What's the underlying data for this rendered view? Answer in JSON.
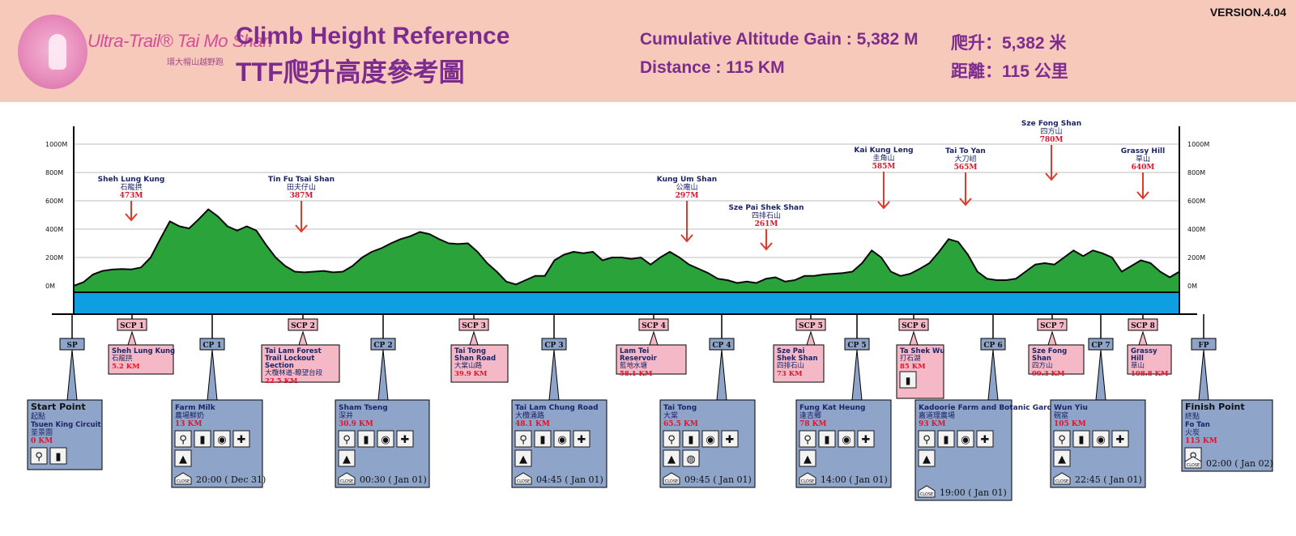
{
  "header": {
    "version": "VERSION.4.04",
    "logo_text": "Ultra-Trail® Tai Mo Shan",
    "logo_sub": "環大帽山越野跑",
    "title_en": "Climb Height Reference",
    "title_zh": "TTF爬升高度參考圖",
    "gain_en": "Cumulative Altitude Gain : 5,382 M",
    "distance_en": "Distance : 115 KM",
    "gain_zh": "爬升：5,382 米",
    "distance_zh": "距離：115 公里"
  },
  "colors": {
    "header_bg": "#f7c9bb",
    "title": "#7c2c8c",
    "terrain": "#2aa33a",
    "water": "#109ee2",
    "cp_box": "#8ea4c8",
    "scp_box": "#f4b8c6",
    "peak_arrow": "#e03a2a"
  },
  "chart_data": {
    "type": "area",
    "title": "Climb Height Reference",
    "y_axis_ticks": [
      "1000M",
      "800M",
      "600M",
      "400M",
      "200M",
      "0M"
    ],
    "y_range": [
      0,
      1000
    ],
    "profile": [
      [
        0,
        0.0
      ],
      [
        1,
        25.0
      ],
      [
        2,
        80.0
      ],
      [
        3,
        105.0
      ],
      [
        4,
        115.0
      ],
      [
        5,
        118.0
      ],
      [
        6,
        116.0
      ],
      [
        7,
        130.0
      ],
      [
        8,
        200.0
      ],
      [
        9,
        330.0
      ],
      [
        10,
        455.0
      ],
      [
        11,
        420.0
      ],
      [
        12,
        405.0
      ],
      [
        13,
        470.0
      ],
      [
        14,
        540.0
      ],
      [
        15,
        490.0
      ],
      [
        16,
        420.0
      ],
      [
        17,
        390.0
      ],
      [
        18,
        420.0
      ],
      [
        19,
        390.0
      ],
      [
        20,
        290.0
      ],
      [
        21,
        200.0
      ],
      [
        22,
        140.0
      ],
      [
        23,
        100.0
      ],
      [
        24,
        95.0
      ],
      [
        25,
        100.0
      ],
      [
        26,
        105.0
      ],
      [
        27,
        95.0
      ],
      [
        28,
        100.0
      ],
      [
        29,
        140.0
      ],
      [
        30,
        200.0
      ],
      [
        31,
        240.0
      ],
      [
        32,
        265.0
      ],
      [
        33,
        300.0
      ],
      [
        34,
        330.0
      ],
      [
        35,
        350.0
      ],
      [
        36,
        380.0
      ],
      [
        37,
        365.0
      ],
      [
        38,
        330.0
      ],
      [
        39,
        300.0
      ],
      [
        40,
        295.0
      ],
      [
        41,
        300.0
      ],
      [
        42,
        240.0
      ],
      [
        43,
        160.0
      ],
      [
        44,
        100.0
      ],
      [
        45,
        30.0
      ],
      [
        46,
        10.0
      ],
      [
        47,
        40.0
      ],
      [
        48,
        70.0
      ],
      [
        49,
        70.0
      ],
      [
        50,
        180.0
      ],
      [
        51,
        220.0
      ],
      [
        52,
        240.0
      ],
      [
        53,
        230.0
      ],
      [
        54,
        240.0
      ],
      [
        55,
        180.0
      ],
      [
        56,
        200.0
      ],
      [
        57,
        200.0
      ],
      [
        58,
        190.0
      ],
      [
        59,
        200.0
      ],
      [
        60,
        150.0
      ],
      [
        61,
        200.0
      ],
      [
        62,
        240.0
      ],
      [
        63,
        200.0
      ],
      [
        64,
        150.0
      ],
      [
        65,
        120.0
      ],
      [
        66,
        90.0
      ],
      [
        67,
        50.0
      ],
      [
        68,
        40.0
      ],
      [
        69,
        20.0
      ],
      [
        70,
        30.0
      ],
      [
        71,
        20.0
      ],
      [
        72,
        50.0
      ],
      [
        73,
        60.0
      ],
      [
        74,
        30.0
      ],
      [
        75,
        40.0
      ],
      [
        76,
        70.0
      ],
      [
        77,
        70.0
      ],
      [
        78,
        80.0
      ],
      [
        79,
        85.0
      ],
      [
        80,
        90.0
      ],
      [
        81,
        100.0
      ],
      [
        82,
        160.0
      ],
      [
        83,
        250.0
      ],
      [
        84,
        200.0
      ],
      [
        85,
        100.0
      ],
      [
        86,
        70.0
      ],
      [
        87,
        85.0
      ],
      [
        88,
        120.0
      ],
      [
        89,
        160.0
      ],
      [
        90,
        240.0
      ],
      [
        91,
        330.0
      ],
      [
        92,
        310.0
      ],
      [
        93,
        220.0
      ],
      [
        94,
        100.0
      ],
      [
        95,
        50.0
      ],
      [
        96,
        40.0
      ],
      [
        97,
        40.0
      ],
      [
        98,
        50.0
      ],
      [
        99,
        100.0
      ],
      [
        100,
        150.0
      ],
      [
        101,
        160.0
      ],
      [
        102,
        150.0
      ],
      [
        103,
        200.0
      ],
      [
        104,
        250.0
      ],
      [
        105,
        210.0
      ],
      [
        106,
        250.0
      ],
      [
        107,
        230.0
      ],
      [
        108,
        200.0
      ],
      [
        109,
        100.0
      ],
      [
        110,
        140.0
      ],
      [
        111,
        180.0
      ],
      [
        112,
        160.0
      ],
      [
        113,
        100.0
      ],
      [
        114,
        60.0
      ],
      [
        115,
        100.0
      ]
    ],
    "peaks": [
      {
        "name_en": "Sheh Lung Kung",
        "name_zh": "石龍拱",
        "elevation": "473M"
      },
      {
        "name_en": "Tin Fu Tsai Shan",
        "name_zh": "田夫仔山",
        "elevation": "387M"
      },
      {
        "name_en": "Kung Um Shan",
        "name_zh": "公庵山",
        "elevation": "297M"
      },
      {
        "name_en": "Sze Pai Shek Shan",
        "name_zh": "四排石山",
        "elevation": "261M"
      },
      {
        "name_en": "Kai Kung Leng",
        "name_zh": "圭角山",
        "elevation": "585M"
      },
      {
        "name_en": "Tai To Yan",
        "name_zh": "大刀屻",
        "elevation": "565M"
      },
      {
        "name_en": "Sze Fong Shan",
        "name_zh": "四方山",
        "elevation": "780M"
      },
      {
        "name_en": "Grassy Hill",
        "name_zh": "草山",
        "elevation": "640M"
      }
    ]
  },
  "checkpoints": [
    {
      "code": "SP",
      "title": "Start Point",
      "zh": "起點",
      "sub_en": "Tsuen King Circuit",
      "sub_zh": "荃景圍",
      "km": "0 KM",
      "close": ""
    },
    {
      "code": "CP 1",
      "title": "Farm Milk",
      "zh": "農場鮮奶",
      "km": "13 KM",
      "close": "20:00 ( Dec 31)"
    },
    {
      "code": "CP 2",
      "title": "Sham Tseng",
      "zh": "深井",
      "km": "30.9 KM",
      "close": "00:30 ( Jan 01)"
    },
    {
      "code": "CP 3",
      "title": "Tai Lam Chung Road",
      "zh": "大欖涌路",
      "km": "48.1 KM",
      "close": "04:45 ( Jan 01)"
    },
    {
      "code": "CP 4",
      "title": "Tai Tong",
      "zh": "大棠",
      "km": "65.5 KM",
      "close": "09:45 ( Jan 01)"
    },
    {
      "code": "CP 5",
      "title": "Fung Kat Heung",
      "zh": "逢吉鄉",
      "km": "78 KM",
      "close": "14:00 ( Jan 01)"
    },
    {
      "code": "CP 6",
      "title": "Kadoorie Farm and Botanic Garden",
      "zh": "嘉道理農場",
      "km": "93 KM",
      "close": "19:00 ( Jan 01)"
    },
    {
      "code": "CP 7",
      "title": "Wun Yiu",
      "zh": "碗窰",
      "km": "105 KM",
      "close": "22:45 ( Jan 01)"
    },
    {
      "code": "FP",
      "title": "Finish Point",
      "zh": "終點",
      "sub_en": "Fo Tan",
      "sub_zh": "火炭",
      "km": "115 KM",
      "close": "02:00 ( Jan 02)"
    }
  ],
  "scps": [
    {
      "code": "SCP 1",
      "name_en": "Sheh Lung Kung",
      "name_zh": "石龍拱",
      "km": "5.2 KM"
    },
    {
      "code": "SCP 2",
      "name_en": "Tai Lam Forest Trail Lockout Section",
      "name_zh": "大欖林道-瞭望台段",
      "km": "22.5 KM"
    },
    {
      "code": "SCP 3",
      "name_en": "Tai Tong Shan Road",
      "name_zh": "大棠山路",
      "km": "39.9 KM"
    },
    {
      "code": "SCP 4",
      "name_en": "Lam Tei Reservoir",
      "name_zh": "藍地水塘",
      "km": "58.1 KM"
    },
    {
      "code": "SCP 5",
      "name_en": "Sze Pai Shek Shan",
      "name_zh": "四排石山",
      "km": "73 KM"
    },
    {
      "code": "SCP 6",
      "name_en": "Ta Shek Wu",
      "name_zh": "打石湖",
      "km": "85 KM"
    },
    {
      "code": "SCP 7",
      "name_en": "Sze Fong Shan",
      "name_zh": "四方山",
      "km": "99.3 KM"
    },
    {
      "code": "SCP 8",
      "name_en": "Grassy Hill",
      "name_zh": "草山",
      "km": "108.8 KM"
    }
  ],
  "labels": {
    "close": "CLOSE"
  },
  "icons": [
    "toilet-icon",
    "water-bottle-icon",
    "food-plate-icon",
    "first-aid-icon",
    "tent-icon",
    "close-sign-icon",
    "drop-bag-icon"
  ]
}
